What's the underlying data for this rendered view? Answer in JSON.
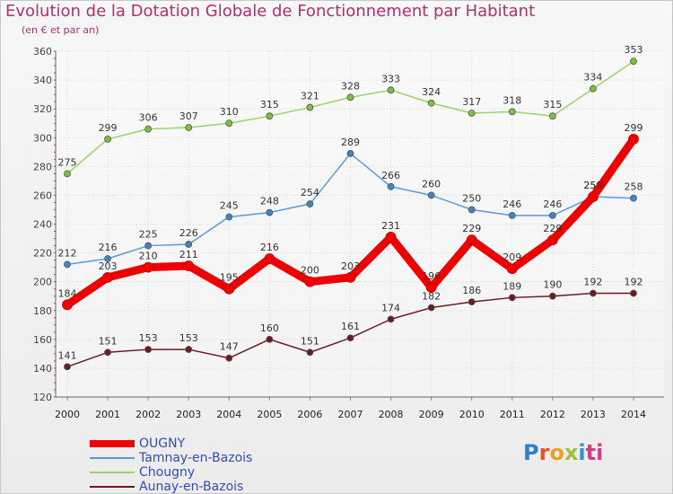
{
  "title": "Evolution de la Dotation Globale de Fonctionnement par Habitant",
  "subtitle": "(en € et par an)",
  "logo": {
    "text": "Proxiti",
    "letters": [
      "P",
      "r",
      "o",
      "x",
      "i",
      "ti"
    ]
  },
  "chart_data": {
    "type": "line",
    "title": "Evolution de la Dotation Globale de Fonctionnement par Habitant",
    "ylabel": "(en € et par an)",
    "xlabel": "",
    "ylim": [
      120,
      360
    ],
    "yticks": [
      120,
      140,
      160,
      180,
      200,
      220,
      240,
      260,
      280,
      300,
      320,
      340,
      360
    ],
    "categories": [
      "2000",
      "2001",
      "2002",
      "2003",
      "2004",
      "2005",
      "2006",
      "2007",
      "2008",
      "2009",
      "2010",
      "2011",
      "2012",
      "2013",
      "2014"
    ],
    "grid": true,
    "legend_position": "bottom-left",
    "series": [
      {
        "name": "Aunay-en-Bazois",
        "color": "#6b1a22",
        "point_color": "#6b1a22",
        "values": [
          141,
          151,
          153,
          153,
          147,
          160,
          151,
          161,
          174,
          182,
          186,
          189,
          190,
          192,
          192
        ],
        "labels": [
          "141",
          "151",
          "153",
          "153",
          "147",
          "160",
          "151",
          "161",
          "174",
          "182",
          "186",
          "189",
          "190",
          "192",
          "192"
        ]
      },
      {
        "name": "Chougny",
        "color": "#99d468",
        "point_color": "#7ac23c",
        "values": [
          275,
          299,
          306,
          307,
          310,
          315,
          321,
          328,
          333,
          324,
          317,
          318,
          315,
          334,
          353
        ],
        "labels": [
          "275",
          "299",
          "306",
          "307",
          "310",
          "315",
          "321",
          "328",
          "333",
          "324",
          "317",
          "318",
          "315",
          "334",
          "353"
        ]
      },
      {
        "name": "Tamnay-en-Bazois",
        "color": "#5b9ad8",
        "point_color": "#3d84c8",
        "values": [
          212,
          216,
          225,
          226,
          245,
          248,
          254,
          289,
          266,
          260,
          250,
          246,
          246,
          259,
          258
        ],
        "labels": [
          "212",
          "216",
          "225",
          "226",
          "245",
          "248",
          "254",
          "289",
          "266",
          "260",
          "250",
          "246",
          "246",
          "259",
          "258"
        ]
      },
      {
        "name": "OUGNY",
        "color": "#ee0000",
        "point_color": "#ee0000",
        "values": [
          184,
          203,
          210,
          211,
          195,
          216,
          200,
          203,
          231,
          196,
          229,
          209,
          229,
          259,
          299
        ],
        "labels": [
          "184",
          "203",
          "210",
          "211",
          "195",
          "216",
          "200",
          "203",
          "231",
          "196",
          "229",
          "209",
          "229",
          "259",
          "299"
        ]
      }
    ],
    "legend": [
      {
        "name": "OUGNY",
        "color": "#ee0000"
      },
      {
        "name": "Tamnay-en-Bazois",
        "color": "#5b9ad8"
      },
      {
        "name": "Chougny",
        "color": "#99d468"
      },
      {
        "name": "Aunay-en-Bazois",
        "color": "#6b1a22"
      }
    ]
  }
}
